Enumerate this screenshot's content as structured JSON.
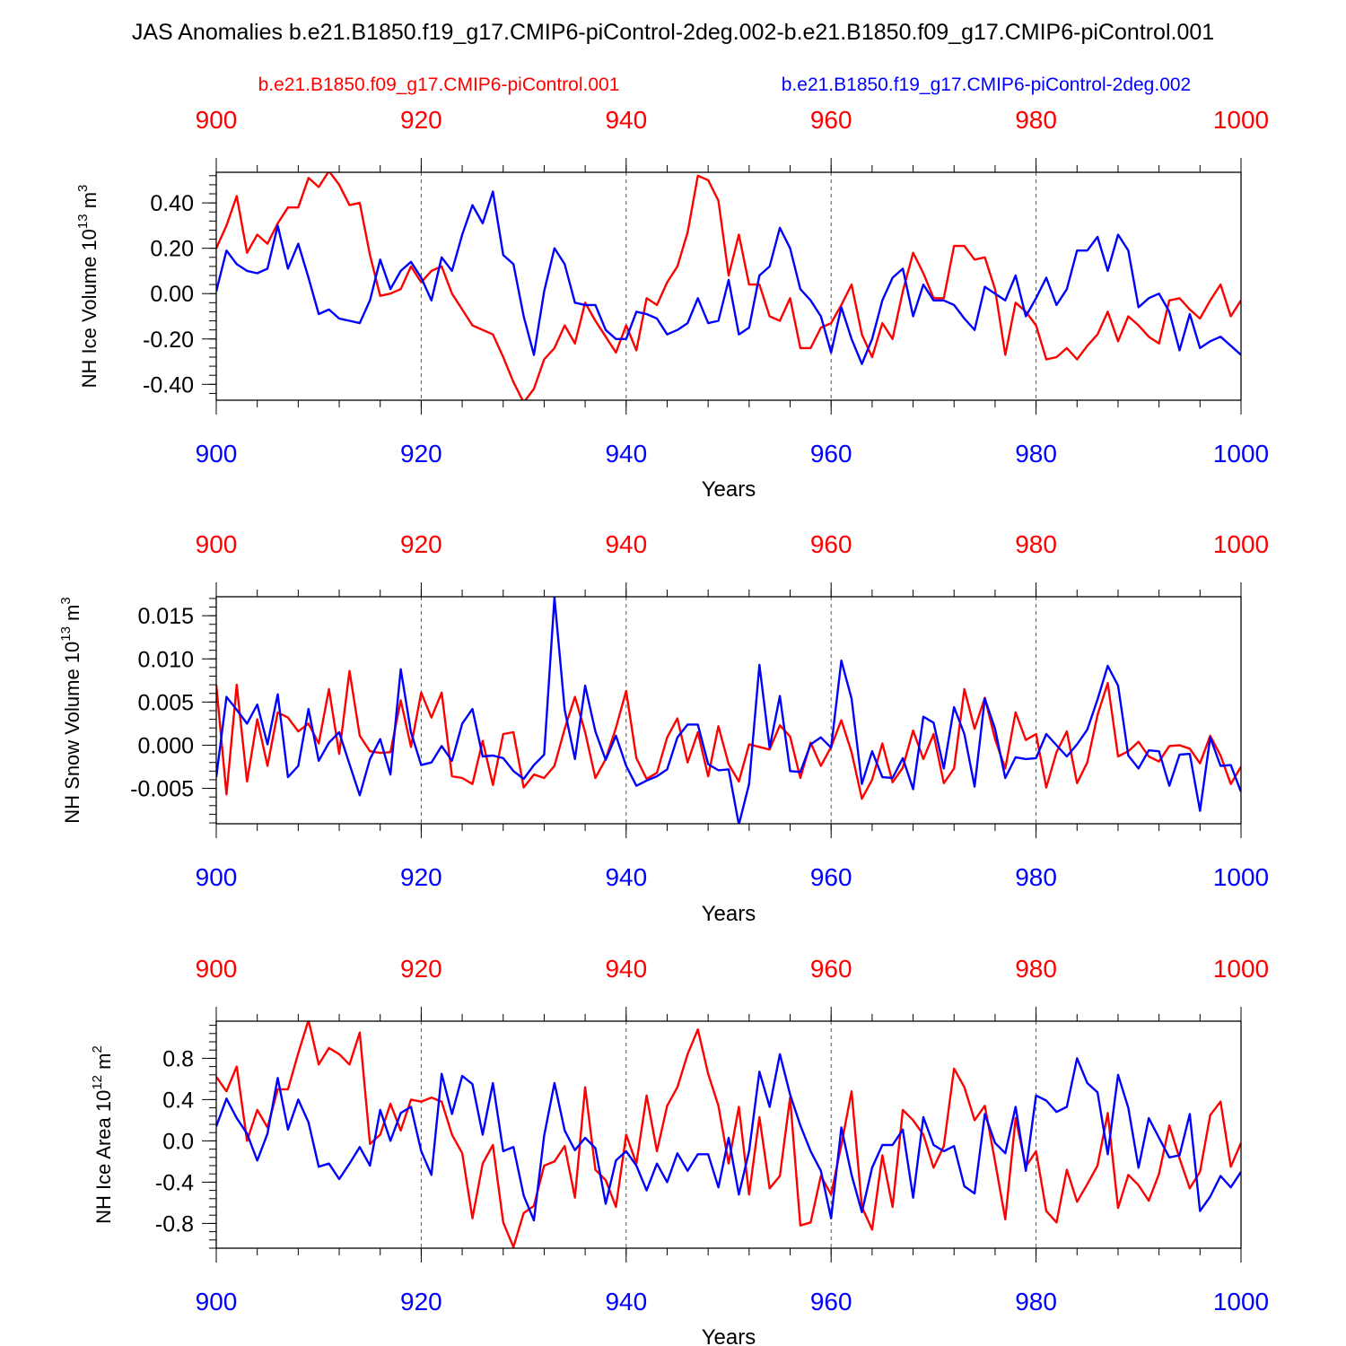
{
  "title": "JAS Anomalies b.e21.B1850.f19_g17.CMIP6-piControl-2deg.002-b.e21.B1850.f09_g17.CMIP6-piControl.001",
  "legend": {
    "red_label": "b.e21.B1850.f09_g17.CMIP6-piControl.001",
    "blue_label": "b.e21.B1850.f19_g17.CMIP6-piControl-2deg.002"
  },
  "colors": {
    "red": "#ff0000",
    "blue": "#0000ff",
    "axis": "#000000",
    "grid": "#555555"
  },
  "chart_data": [
    {
      "type": "line",
      "title": "",
      "ylabel": "NH Ice Volume 10",
      "ylabel_exp": "13",
      "ylabel_unit": " m",
      "ylabel_unit_exp": "3",
      "xlabel": "Years",
      "xlim": [
        900,
        1000
      ],
      "ylim": [
        -0.47,
        0.535
      ],
      "x_ticks": [
        900,
        920,
        940,
        960,
        980,
        1000
      ],
      "x_tick_labels": [
        "900",
        "920",
        "940",
        "960",
        "980",
        "1000"
      ],
      "y_ticks": [
        -0.4,
        -0.2,
        0.0,
        0.2,
        0.4
      ],
      "y_tick_labels": [
        "-0.40",
        "-0.20",
        "0.00",
        "0.20",
        "0.40"
      ],
      "y_minor_step": 0.04,
      "grid": "vertical dashed at major x ticks",
      "x": [
        900,
        901,
        902,
        903,
        904,
        905,
        906,
        907,
        908,
        909,
        910,
        911,
        912,
        913,
        914,
        915,
        916,
        917,
        918,
        919,
        920,
        921,
        922,
        923,
        924,
        925,
        926,
        927,
        928,
        929,
        930,
        931,
        932,
        933,
        934,
        935,
        936,
        937,
        938,
        939,
        940,
        941,
        942,
        943,
        944,
        945,
        946,
        947,
        948,
        949,
        950,
        951,
        952,
        953,
        954,
        955,
        956,
        957,
        958,
        959,
        960,
        961,
        962,
        963,
        964,
        965,
        966,
        967,
        968,
        969,
        970,
        971,
        972,
        973,
        974,
        975,
        976,
        977,
        978,
        979,
        980,
        981,
        982,
        983,
        984,
        985,
        986,
        987,
        988,
        989,
        990,
        991,
        992,
        993,
        994,
        995,
        996,
        997,
        998,
        999,
        1000
      ],
      "series": [
        {
          "name": "b.e21.B1850.f09_g17.CMIP6-piControl.001",
          "color": "red",
          "values": [
            0.2,
            0.3,
            0.43,
            0.18,
            0.26,
            0.22,
            0.31,
            0.38,
            0.38,
            0.51,
            0.47,
            0.54,
            0.48,
            0.39,
            0.4,
            0.17,
            -0.01,
            0.0,
            0.02,
            0.12,
            0.05,
            0.1,
            0.12,
            0.0,
            -0.07,
            -0.14,
            -0.16,
            -0.18,
            -0.28,
            -0.39,
            -0.48,
            -0.42,
            -0.29,
            -0.24,
            -0.14,
            -0.22,
            -0.04,
            -0.12,
            -0.19,
            -0.26,
            -0.14,
            -0.25,
            -0.02,
            -0.05,
            0.05,
            0.12,
            0.27,
            0.52,
            0.5,
            0.41,
            0.08,
            0.26,
            0.04,
            0.04,
            -0.1,
            -0.12,
            -0.02,
            -0.24,
            -0.24,
            -0.15,
            -0.13,
            -0.05,
            0.04,
            -0.18,
            -0.28,
            -0.13,
            -0.2,
            0.01,
            0.18,
            0.09,
            -0.02,
            -0.02,
            0.21,
            0.21,
            0.15,
            0.16,
            0.02,
            -0.27,
            -0.04,
            -0.08,
            -0.14,
            -0.29,
            -0.28,
            -0.24,
            -0.29,
            -0.23,
            -0.18,
            -0.08,
            -0.21,
            -0.1,
            -0.14,
            -0.19,
            -0.22,
            -0.03,
            -0.02,
            -0.07,
            -0.11,
            -0.03,
            0.04,
            -0.1,
            -0.03
          ]
        },
        {
          "name": "b.e21.B1850.f19_g17.CMIP6-piControl-2deg.002",
          "color": "blue",
          "values": [
            0.01,
            0.19,
            0.13,
            0.1,
            0.09,
            0.11,
            0.3,
            0.11,
            0.22,
            0.07,
            -0.09,
            -0.07,
            -0.11,
            -0.12,
            -0.13,
            -0.03,
            0.15,
            0.02,
            0.1,
            0.14,
            0.07,
            -0.03,
            0.16,
            0.1,
            0.26,
            0.39,
            0.31,
            0.45,
            0.17,
            0.13,
            -0.1,
            -0.27,
            0.01,
            0.2,
            0.13,
            -0.04,
            -0.05,
            -0.05,
            -0.16,
            -0.2,
            -0.2,
            -0.08,
            -0.09,
            -0.11,
            -0.18,
            -0.16,
            -0.13,
            -0.02,
            -0.13,
            -0.12,
            0.06,
            -0.18,
            -0.15,
            0.08,
            0.12,
            0.29,
            0.2,
            0.02,
            -0.03,
            -0.1,
            -0.26,
            -0.06,
            -0.2,
            -0.31,
            -0.2,
            -0.03,
            0.07,
            0.11,
            -0.1,
            0.04,
            -0.03,
            -0.03,
            -0.05,
            -0.11,
            -0.16,
            0.03,
            0.0,
            -0.03,
            0.08,
            -0.1,
            -0.02,
            0.07,
            -0.05,
            0.02,
            0.19,
            0.19,
            0.25,
            0.1,
            0.26,
            0.19,
            -0.06,
            -0.02,
            0.0,
            -0.08,
            -0.25,
            -0.09,
            -0.24,
            -0.21,
            -0.19,
            -0.23,
            -0.27
          ]
        }
      ]
    },
    {
      "type": "line",
      "title": "",
      "ylabel": "NH Snow Volume 10",
      "ylabel_exp": "13",
      "ylabel_unit": " m",
      "ylabel_unit_exp": "3",
      "xlabel": "Years",
      "xlim": [
        900,
        1000
      ],
      "ylim": [
        -0.0091,
        0.0172
      ],
      "x_ticks": [
        900,
        920,
        940,
        960,
        980,
        1000
      ],
      "x_tick_labels": [
        "900",
        "920",
        "940",
        "960",
        "980",
        "1000"
      ],
      "y_ticks": [
        -0.005,
        0.0,
        0.005,
        0.01,
        0.015
      ],
      "y_tick_labels": [
        "-0.005",
        "0.000",
        "0.005",
        "0.010",
        "0.015"
      ],
      "y_minor_step": 0.001,
      "grid": "vertical dashed at major x ticks",
      "x": [
        900,
        901,
        902,
        903,
        904,
        905,
        906,
        907,
        908,
        909,
        910,
        911,
        912,
        913,
        914,
        915,
        916,
        917,
        918,
        919,
        920,
        921,
        922,
        923,
        924,
        925,
        926,
        927,
        928,
        929,
        930,
        931,
        932,
        933,
        934,
        935,
        936,
        937,
        938,
        939,
        940,
        941,
        942,
        943,
        944,
        945,
        946,
        947,
        948,
        949,
        950,
        951,
        952,
        953,
        954,
        955,
        956,
        957,
        958,
        959,
        960,
        961,
        962,
        963,
        964,
        965,
        966,
        967,
        968,
        969,
        970,
        971,
        972,
        973,
        974,
        975,
        976,
        977,
        978,
        979,
        980,
        981,
        982,
        983,
        984,
        985,
        986,
        987,
        988,
        989,
        990,
        991,
        992,
        993,
        994,
        995,
        996,
        997,
        998,
        999,
        1000
      ],
      "series": [
        {
          "name": "b.e21.B1850.f09_g17.CMIP6-piControl.001",
          "color": "red",
          "values": [
            0.007,
            -0.0057,
            0.007,
            -0.0042,
            0.003,
            -0.0024,
            0.0038,
            0.0032,
            0.0016,
            0.0025,
            0.0002,
            0.0065,
            -0.001,
            0.0086,
            0.0011,
            -0.0007,
            -0.0009,
            -0.0008,
            0.0052,
            -0.0002,
            0.0061,
            0.0032,
            0.0061,
            -0.0036,
            -0.0038,
            -0.0045,
            0.0005,
            -0.0046,
            0.0013,
            0.0015,
            -0.0049,
            -0.0034,
            -0.0038,
            -0.0024,
            0.0019,
            0.0056,
            0.0015,
            -0.0038,
            -0.0016,
            0.002,
            0.0063,
            -0.0015,
            -0.0039,
            -0.0032,
            0.0009,
            0.0031,
            -0.002,
            0.0015,
            -0.0036,
            0.0022,
            -0.0022,
            -0.0042,
            0.0001,
            -0.0002,
            -0.0005,
            0.0023,
            0.001,
            -0.0038,
            0.0003,
            -0.0024,
            -0.0002,
            0.0029,
            -0.0008,
            -0.0062,
            -0.004,
            0.0002,
            -0.0043,
            -0.0026,
            0.0017,
            -0.0016,
            0.0013,
            -0.0044,
            -0.0027,
            0.0065,
            0.0019,
            0.0055,
            0.0007,
            -0.0027,
            0.0038,
            0.0006,
            0.0013,
            -0.0049,
            -0.0008,
            0.0016,
            -0.0044,
            -0.002,
            0.0035,
            0.0072,
            -0.0013,
            -0.0007,
            0.0004,
            -0.0013,
            -0.0019,
            -0.0001,
            0.0,
            -0.0004,
            -0.0021,
            0.0011,
            -0.0012,
            -0.0045,
            -0.0025
          ]
        },
        {
          "name": "b.e21.B1850.f19_g17.CMIP6-piControl-2deg.002",
          "color": "blue",
          "values": [
            -0.0037,
            0.0056,
            0.0041,
            0.0025,
            0.0047,
            0.0001,
            0.0059,
            -0.0037,
            -0.0024,
            0.0042,
            -0.0018,
            0.0003,
            0.0015,
            -0.0022,
            -0.0058,
            -0.0016,
            0.0007,
            -0.0034,
            0.0088,
            0.0015,
            -0.0023,
            -0.002,
            -0.0001,
            -0.0018,
            0.0025,
            0.0042,
            -0.0013,
            -0.0012,
            -0.0015,
            -0.003,
            -0.0039,
            -0.0023,
            -0.0011,
            0.0171,
            0.0041,
            -0.0016,
            0.0069,
            0.0016,
            -0.0017,
            0.0011,
            -0.0024,
            -0.0047,
            -0.0041,
            -0.0036,
            -0.0028,
            0.0009,
            0.0024,
            0.0024,
            -0.0022,
            -0.0029,
            -0.0028,
            -0.0092,
            -0.0045,
            0.0093,
            -0.0003,
            0.0057,
            -0.003,
            -0.0031,
            0.0001,
            0.0009,
            -0.0003,
            0.0098,
            0.0054,
            -0.0045,
            -0.0007,
            -0.0037,
            -0.0038,
            -0.0015,
            -0.0051,
            0.0033,
            0.0026,
            -0.0027,
            0.0044,
            0.0013,
            -0.0048,
            0.0054,
            0.0019,
            -0.0038,
            -0.0014,
            -0.0016,
            -0.0015,
            0.0013,
            0.0,
            -0.0013,
            0.0001,
            0.0018,
            0.0053,
            0.0092,
            0.0069,
            -0.0012,
            -0.0027,
            -0.0006,
            -0.0007,
            -0.0047,
            -0.0011,
            -0.001,
            -0.0076,
            0.0009,
            -0.0024,
            -0.0023,
            -0.0054
          ]
        }
      ]
    },
    {
      "type": "line",
      "title": "",
      "ylabel": "NH Ice Area 10",
      "ylabel_exp": "12",
      "ylabel_unit": " m",
      "ylabel_unit_exp": "2",
      "xlabel": "Years",
      "xlim": [
        900,
        1000
      ],
      "ylim": [
        -1.04,
        1.16
      ],
      "x_ticks": [
        900,
        920,
        940,
        960,
        980,
        1000
      ],
      "x_tick_labels": [
        "900",
        "920",
        "940",
        "960",
        "980",
        "1000"
      ],
      "y_ticks": [
        -0.8,
        -0.4,
        0.0,
        0.4,
        0.8
      ],
      "y_tick_labels": [
        "-0.8",
        "-0.4",
        "0.0",
        "0.4",
        "0.8"
      ],
      "y_minor_step": 0.08,
      "grid": "vertical dashed at major x ticks",
      "x": [
        900,
        901,
        902,
        903,
        904,
        905,
        906,
        907,
        908,
        909,
        910,
        911,
        912,
        913,
        914,
        915,
        916,
        917,
        918,
        919,
        920,
        921,
        922,
        923,
        924,
        925,
        926,
        927,
        928,
        929,
        930,
        931,
        932,
        933,
        934,
        935,
        936,
        937,
        938,
        939,
        940,
        941,
        942,
        943,
        944,
        945,
        946,
        947,
        948,
        949,
        950,
        951,
        952,
        953,
        954,
        955,
        956,
        957,
        958,
        959,
        960,
        961,
        962,
        963,
        964,
        965,
        966,
        967,
        968,
        969,
        970,
        971,
        972,
        973,
        974,
        975,
        976,
        977,
        978,
        979,
        980,
        981,
        982,
        983,
        984,
        985,
        986,
        987,
        988,
        989,
        990,
        991,
        992,
        993,
        994,
        995,
        996,
        997,
        998,
        999,
        1000
      ],
      "series": [
        {
          "name": "b.e21.B1850.f09_g17.CMIP6-piControl.001",
          "color": "red",
          "values": [
            0.62,
            0.48,
            0.72,
            0.0,
            0.3,
            0.13,
            0.5,
            0.5,
            0.85,
            1.17,
            0.74,
            0.9,
            0.84,
            0.74,
            1.05,
            -0.03,
            0.06,
            0.36,
            0.1,
            0.4,
            0.38,
            0.42,
            0.38,
            0.06,
            -0.12,
            -0.75,
            -0.22,
            -0.04,
            -0.79,
            -1.03,
            -0.7,
            -0.63,
            -0.24,
            -0.2,
            -0.05,
            -0.55,
            0.52,
            -0.28,
            -0.38,
            -0.64,
            0.06,
            -0.22,
            0.44,
            -0.1,
            0.34,
            0.52,
            0.84,
            1.08,
            0.65,
            0.34,
            -0.22,
            0.33,
            -0.52,
            0.23,
            -0.46,
            -0.34,
            0.42,
            -0.82,
            -0.79,
            -0.34,
            -0.52,
            -0.04,
            0.48,
            -0.64,
            -0.86,
            -0.14,
            -0.64,
            0.3,
            0.2,
            0.06,
            -0.26,
            -0.05,
            0.7,
            0.52,
            0.2,
            0.34,
            -0.2,
            -0.76,
            0.22,
            -0.25,
            -0.1,
            -0.68,
            -0.79,
            -0.28,
            -0.59,
            -0.42,
            -0.24,
            0.27,
            -0.65,
            -0.33,
            -0.43,
            -0.58,
            -0.32,
            0.15,
            -0.17,
            -0.46,
            -0.3,
            0.25,
            0.38,
            -0.25,
            -0.02
          ]
        },
        {
          "name": "b.e21.B1850.f19_g17.CMIP6-piControl-2deg.002",
          "color": "blue",
          "values": [
            0.14,
            0.41,
            0.22,
            0.07,
            -0.19,
            0.07,
            0.61,
            0.11,
            0.4,
            0.18,
            -0.25,
            -0.22,
            -0.37,
            -0.22,
            -0.06,
            -0.24,
            0.3,
            0.0,
            0.27,
            0.33,
            -0.1,
            -0.33,
            0.65,
            0.26,
            0.63,
            0.55,
            0.06,
            0.56,
            -0.1,
            -0.06,
            -0.53,
            -0.77,
            0.05,
            0.56,
            0.1,
            -0.09,
            0.03,
            -0.07,
            -0.61,
            -0.19,
            -0.1,
            -0.24,
            -0.48,
            -0.22,
            -0.4,
            -0.12,
            -0.29,
            -0.13,
            -0.13,
            -0.45,
            0.03,
            -0.52,
            -0.1,
            0.67,
            0.33,
            0.84,
            0.45,
            0.15,
            -0.1,
            -0.29,
            -0.75,
            0.13,
            -0.33,
            -0.69,
            -0.26,
            -0.04,
            -0.04,
            0.11,
            -0.55,
            0.23,
            -0.04,
            -0.1,
            -0.05,
            -0.44,
            -0.51,
            0.26,
            -0.02,
            -0.12,
            0.33,
            -0.29,
            0.44,
            0.39,
            0.28,
            0.33,
            0.8,
            0.56,
            0.47,
            -0.13,
            0.64,
            0.32,
            -0.26,
            0.22,
            0.03,
            -0.16,
            -0.14,
            0.26,
            -0.68,
            -0.54,
            -0.34,
            -0.45,
            -0.3
          ]
        }
      ]
    }
  ]
}
